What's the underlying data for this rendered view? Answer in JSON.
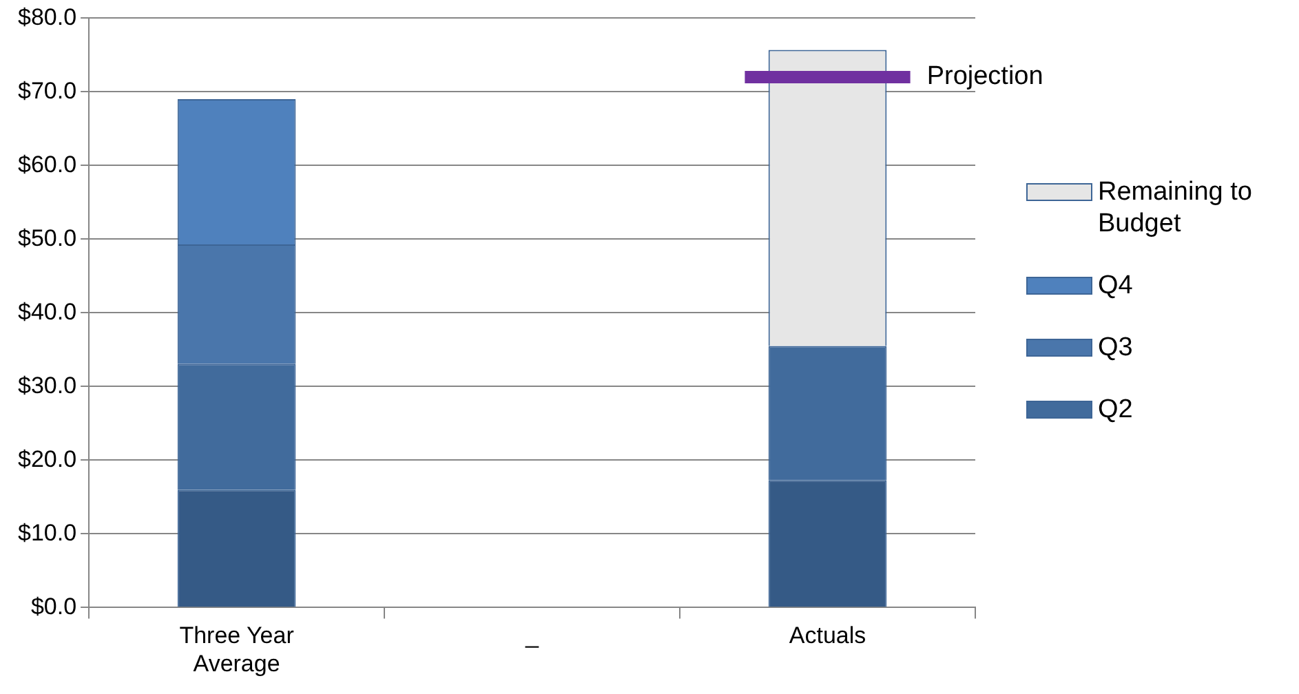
{
  "chart_data": {
    "type": "bar",
    "stacked": true,
    "categories": [
      "Three Year Average",
      "_",
      "Actuals"
    ],
    "series": [
      {
        "color": "#355a86",
        "values": [
          16.0,
          null,
          17.3
        ]
      },
      {
        "name": "Q2",
        "color": "#416b9c",
        "values": [
          17.1,
          null,
          18.2
        ]
      },
      {
        "name": "Q3",
        "color": "#4a76ab",
        "values": [
          16.2,
          null,
          null
        ]
      },
      {
        "name": "Q4",
        "color": "#4f81bd",
        "values": [
          19.7,
          null,
          null
        ]
      },
      {
        "name": "Remaining to Budget",
        "color": "#e6e6e6",
        "values": [
          null,
          null,
          40.2
        ]
      }
    ],
    "ref_lines": [
      {
        "axis": "y",
        "value": 72,
        "label": "Projection",
        "color": "#7030a0"
      }
    ],
    "ylim": [
      0,
      80
    ],
    "yticks": [
      {
        "value": 0,
        "label": "$0.0"
      },
      {
        "value": 10,
        "label": "$10.0"
      },
      {
        "value": 20,
        "label": "$20.0"
      },
      {
        "value": 30,
        "label": "$30.0"
      },
      {
        "value": 40,
        "label": "$40.0"
      },
      {
        "value": 50,
        "label": "$50.0"
      },
      {
        "value": 60,
        "label": "$60.0"
      },
      {
        "value": 70,
        "label": "$70.0"
      },
      {
        "value": 80,
        "label": "$80.0"
      }
    ],
    "grid": "y",
    "legend": "right"
  }
}
